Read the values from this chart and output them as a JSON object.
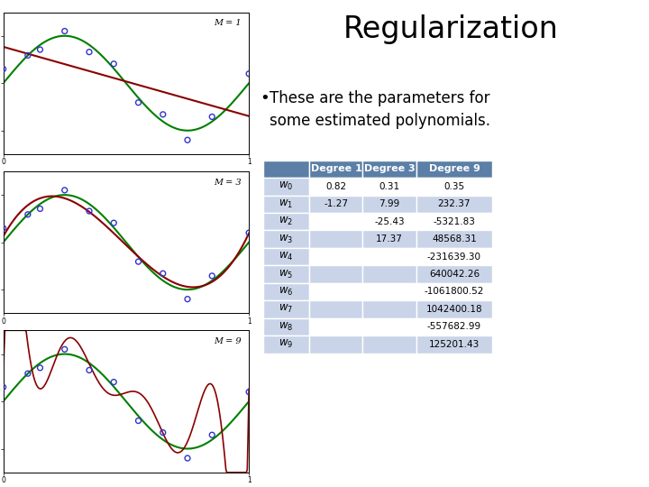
{
  "title": "Regularization",
  "bullet": "These are the parameters for\nsome estimated polynomials.",
  "col_headers": [
    "",
    "Degree 1",
    "Degree 3",
    "Degree 9"
  ],
  "row_labels_plain": [
    "w_0",
    "w_1",
    "w_2",
    "w_3",
    "w_4",
    "w_5",
    "w_6",
    "w_7",
    "w_8",
    "w_9"
  ],
  "table_data": [
    [
      "0.82",
      "0.31",
      "0.35"
    ],
    [
      "-1.27",
      "7.99",
      "232.37"
    ],
    [
      "",
      "-25.43",
      "-5321.83"
    ],
    [
      "",
      "17.37",
      "48568.31"
    ],
    [
      "",
      "",
      "-231639.30"
    ],
    [
      "",
      "",
      "640042.26"
    ],
    [
      "",
      "",
      "-1061800.52"
    ],
    [
      "",
      "",
      "1042400.18"
    ],
    [
      "",
      "",
      "-557682.99"
    ],
    [
      "",
      "",
      "125201.43"
    ]
  ],
  "header_bg": "#5B7FA6",
  "header_fg": "#FFFFFF",
  "row_even_bg": "#FFFFFF",
  "row_odd_bg": "#C9D4E8",
  "col1_bg": "#C9D4E8",
  "text_color": "#000000",
  "background_color": "#FFFFFF",
  "plot_labels": [
    "M = 1",
    "M = 3",
    "M = 9"
  ],
  "title_fontsize": 24,
  "bullet_fontsize": 12
}
